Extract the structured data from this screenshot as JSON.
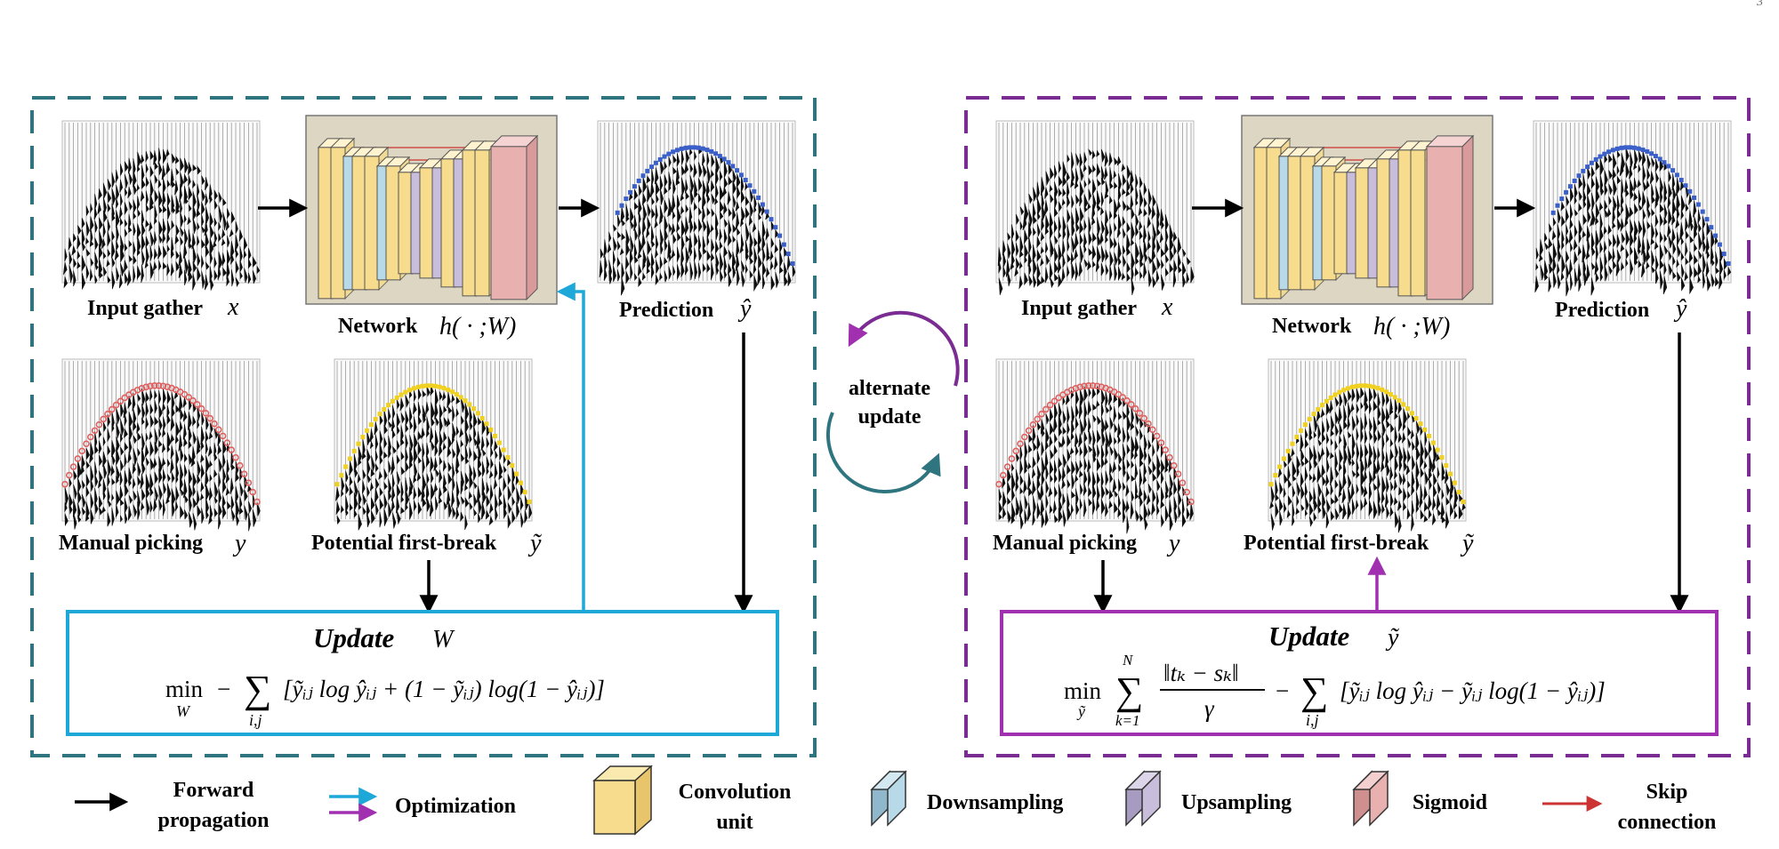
{
  "corner_mark": "3",
  "left_panel": {
    "input_gather": {
      "label": "Input gather",
      "symbol": "x"
    },
    "network": {
      "label": "Network",
      "symbol": "h( · ;W)"
    },
    "prediction": {
      "label": "Prediction",
      "symbol": "ŷ"
    },
    "manual_picking": {
      "label": "Manual picking",
      "symbol": "y"
    },
    "potential": {
      "label": "Potential first-break",
      "symbol": "ỹ"
    },
    "update": {
      "title": "Update",
      "title_symbol": "W",
      "eq_min": "min",
      "eq_sub": "W",
      "eq_sum_sub": "i,j",
      "eq_body": "[ỹᵢⱼ log ŷᵢⱼ + (1 − ỹᵢⱼ) log(1 − ŷᵢⱼ)]"
    }
  },
  "center": {
    "line1": "alternate",
    "line2": "update"
  },
  "right_panel": {
    "input_gather": {
      "label": "Input gather",
      "symbol": "x"
    },
    "network": {
      "label": "Network",
      "symbol": "h( · ;W)"
    },
    "prediction": {
      "label": "Prediction",
      "symbol": "ŷ"
    },
    "manual_picking": {
      "label": "Manual picking",
      "symbol": "y"
    },
    "potential": {
      "label": "Potential first-break",
      "symbol": "ỹ"
    },
    "update": {
      "title": "Update",
      "title_symbol": "ỹ",
      "eq_min": "min",
      "eq_sub": "ỹ",
      "eq_sum_top": "N",
      "eq_sum_bottom": "k=1",
      "eq_frac_num": "‖tₖ − sₖ‖",
      "eq_frac_den": "γ",
      "eq_sum2_sub": "i,j",
      "eq_body": "[ỹᵢⱼ log ŷᵢⱼ − ỹᵢⱼ log(1 − ŷᵢⱼ)]"
    }
  },
  "legend": {
    "forward": [
      "Forward",
      "propagation"
    ],
    "optimization": "Optimization",
    "convolution": [
      "Convolution",
      "unit"
    ],
    "downsampling": "Downsampling",
    "upsampling": "Upsampling",
    "sigmoid": "Sigmoid",
    "skip": [
      "Skip",
      "connection"
    ]
  },
  "colors": {
    "left_frame": "#2e7580",
    "right_frame": "#7a2c92",
    "optimization_blue": "#1ea8d8",
    "optimization_purple": "#a030b0",
    "conv": "#f7dc8e",
    "down": "#b8d9e8",
    "up": "#c8bedc",
    "sigmoid": "#e9b0b0",
    "skip": "#cc3333",
    "pred_dots": "#3a5fc8",
    "manual_dots": "#e06060",
    "potential_dots": "#f0d020"
  }
}
